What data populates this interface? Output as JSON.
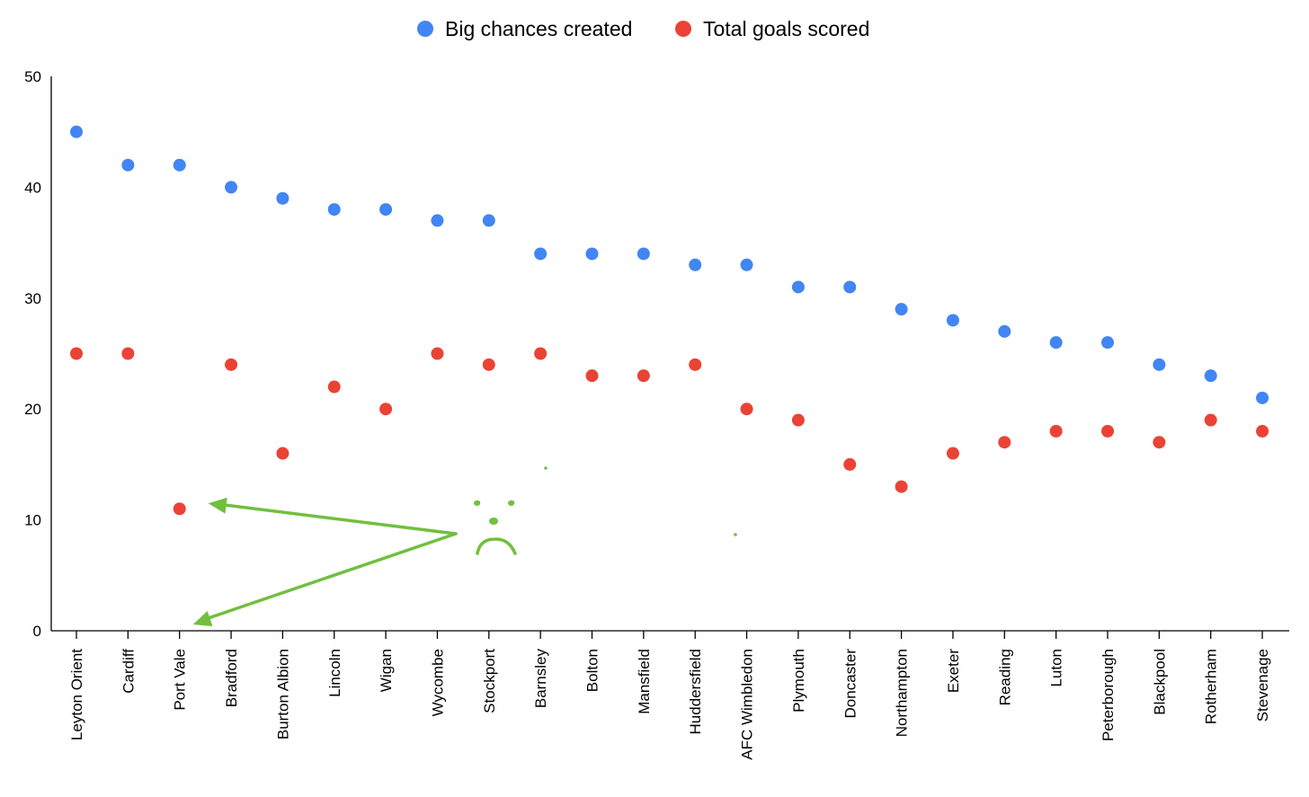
{
  "chart_data": {
    "type": "scatter",
    "title": "",
    "xlabel": "",
    "ylabel": "",
    "ylim": [
      0,
      50
    ],
    "yticks": [
      0,
      10,
      20,
      30,
      40,
      50
    ],
    "grid": false,
    "legend_position": "top-center",
    "categories": [
      "Leyton Orient",
      "Cardiff",
      "Port Vale",
      "Bradford",
      "Burton Albion",
      "Lincoln",
      "Wigan",
      "Wycombe",
      "Stockport",
      "Barnsley",
      "Bolton",
      "Mansfield",
      "Huddersfield",
      "AFC Wimbledon",
      "Plymouth",
      "Doncaster",
      "Northampton",
      "Exeter",
      "Reading",
      "Luton",
      "Peterborough",
      "Blackpool",
      "Rotherham",
      "Stevenage"
    ],
    "series": [
      {
        "name": "Big chances created",
        "color": "#4285f4",
        "values": [
          45,
          42,
          42,
          40,
          39,
          38,
          38,
          37,
          37,
          34,
          34,
          34,
          33,
          33,
          31,
          31,
          29,
          28,
          27,
          26,
          26,
          24,
          23,
          21
        ]
      },
      {
        "name": "Total goals scored",
        "color": "#ea4335",
        "values": [
          25,
          25,
          11,
          24,
          16,
          22,
          20,
          25,
          24,
          25,
          23,
          23,
          24,
          20,
          19,
          15,
          13,
          16,
          17,
          18,
          18,
          17,
          19,
          18
        ]
      }
    ],
    "annotation": {
      "description": "hand-drawn green arrows pointing to Port Vale with a sad face",
      "color": "#72bf3e",
      "target_category": "Port Vale",
      "target_values": [
        11,
        0
      ]
    }
  }
}
